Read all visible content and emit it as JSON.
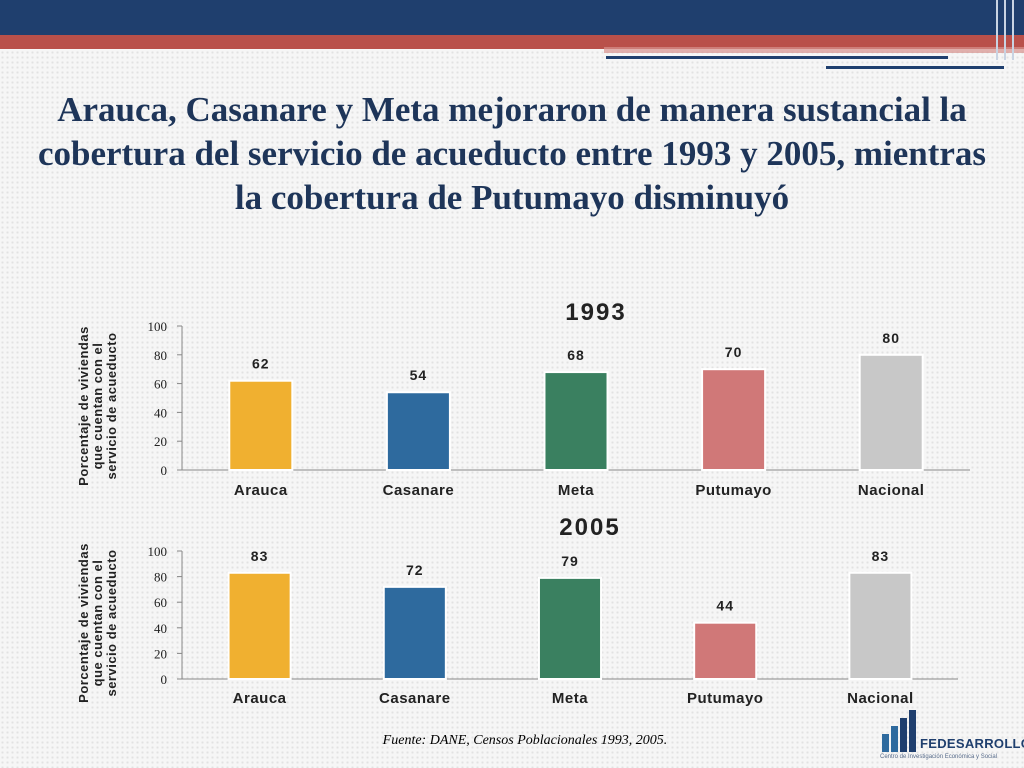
{
  "title": "Arauca, Casanare y Meta mejoraron de manera sustancial la cobertura del servicio de acueducto entre 1993 y 2005, mientras la cobertura de Putumayo disminuyó",
  "source": "Fuente: DANE, Censos Poblacionales 1993, 2005.",
  "logo": {
    "name": "FEDESARROLLO",
    "tagline": "Centro de Investigación Económica y Social"
  },
  "colors": {
    "navy": "#1f3f6e",
    "red": "#b9504a"
  },
  "chart_data": [
    {
      "type": "bar",
      "title": "1993",
      "ylabel": "Porcentaje de viviendas que cuentan con el servicio de acueducto",
      "ylim": [
        0,
        100
      ],
      "yticks": [
        0,
        20,
        40,
        60,
        80,
        100
      ],
      "categories": [
        "Arauca",
        "Casanare",
        "Meta",
        "Putumayo",
        "Nacional"
      ],
      "values": [
        62,
        54,
        68,
        70,
        80
      ],
      "colors": [
        "#f0b030",
        "#2e6a9e",
        "#3a8060",
        "#d07878",
        "#c8c8c8"
      ],
      "grid": false,
      "data_labels": true
    },
    {
      "type": "bar",
      "title": "2005",
      "ylabel": "Porcentaje de viviendas que cuentan con el servicio de acueducto",
      "ylim": [
        0,
        100
      ],
      "yticks": [
        0,
        20,
        40,
        60,
        80,
        100
      ],
      "categories": [
        "Arauca",
        "Casanare",
        "Meta",
        "Putumayo",
        "Nacional"
      ],
      "values": [
        83,
        72,
        79,
        44,
        83
      ],
      "colors": [
        "#f0b030",
        "#2e6a9e",
        "#3a8060",
        "#d07878",
        "#c8c8c8"
      ],
      "grid": false,
      "data_labels": true
    }
  ]
}
